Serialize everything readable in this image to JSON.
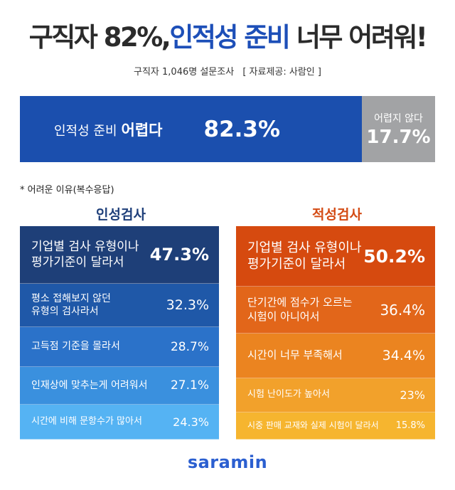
{
  "header": {
    "title_prefix": "구직자 82%,",
    "title_highlight": "인적성 준비",
    "title_suffix": "너무 어려워!",
    "survey": "구직자 1,046명 설문조사",
    "source": "[ 자료제공: 사람인 ]"
  },
  "summary": {
    "hard_label_prefix": "인적성 준비",
    "hard_label_emphasis": "어렵다",
    "hard_value_text": "82.3%",
    "easy_label": "어렵지 않다",
    "easy_value_text": "17.7%"
  },
  "note": "* 어려운 이유(복수응답)",
  "logo": "saramin",
  "colors": {
    "hard": "#1b4fae",
    "easy": "#a2a3a5",
    "left_title": "#1e3f7a",
    "right_title": "#d44b14",
    "left_rows": [
      "#1e3f78",
      "#1f58a8",
      "#2b72c9",
      "#3a90de",
      "#55b3f3"
    ],
    "right_rows": [
      "#d64a0f",
      "#e2661a",
      "#eb8420",
      "#f2a12b",
      "#f6b52f"
    ]
  },
  "chart_data": [
    {
      "type": "bar",
      "title": "",
      "categories": [
        "구직자 인적성 준비"
      ],
      "series": [
        {
          "name": "어렵다",
          "values": [
            82.3
          ]
        },
        {
          "name": "어렵지 않다",
          "values": [
            17.7
          ]
        }
      ],
      "unit": "%"
    },
    {
      "type": "table",
      "title": "인성검사",
      "rows": [
        {
          "reason": "기업별 검사 유형이나\n평가기준이 달라서",
          "value": 47.3,
          "value_text": "47.3%"
        },
        {
          "reason": "평소 접해보지 않던\n유형의 검사라서",
          "value": 32.3,
          "value_text": "32.3%"
        },
        {
          "reason": "고득점 기준을 몰라서",
          "value": 28.7,
          "value_text": "28.7%"
        },
        {
          "reason": "인재상에 맞추는게 어려워서",
          "value": 27.1,
          "value_text": "27.1%"
        },
        {
          "reason": "시간에 비해 문항수가 많아서",
          "value": 24.3,
          "value_text": "24.3%"
        }
      ]
    },
    {
      "type": "table",
      "title": "적성검사",
      "rows": [
        {
          "reason": "기업별 검사 유형이나\n평가기준이 달라서",
          "value": 50.2,
          "value_text": "50.2%"
        },
        {
          "reason": "단기간에 점수가 오르는\n시험이 아니어서",
          "value": 36.4,
          "value_text": "36.4%"
        },
        {
          "reason": "시간이 너무 부족해서",
          "value": 34.4,
          "value_text": "34.4%"
        },
        {
          "reason": "시험 난이도가 높아서",
          "value": 23,
          "value_text": "23%"
        },
        {
          "reason": "시중 판매 교재와 실제 시험이 달라서",
          "value": 15.8,
          "value_text": "15.8%"
        }
      ]
    }
  ]
}
